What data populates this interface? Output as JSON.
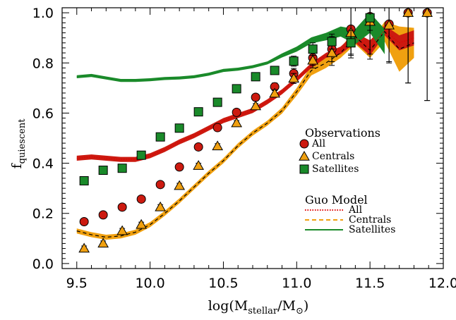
{
  "chart_data": {
    "type": "scatter",
    "xlabel": {
      "main": "log(M",
      "sub": "stellar",
      "slash": "/M",
      "sun": "⊙",
      "close": ")"
    },
    "ylabel": {
      "main": "f",
      "sub": "quiescent"
    },
    "xlim": [
      9.4,
      12.0
    ],
    "ylim": [
      -0.02,
      1.02
    ],
    "xticks": [
      9.5,
      10.0,
      10.5,
      11.0,
      11.5,
      12.0
    ],
    "xtick_labels": [
      "9.5",
      "10.0",
      "10.5",
      "11.0",
      "11.5",
      "12.0"
    ],
    "yticks": [
      0.0,
      0.2,
      0.4,
      0.6,
      0.8,
      1.0
    ],
    "ytick_labels": [
      "0.0",
      "0.2",
      "0.4",
      "0.6",
      "0.8",
      "1.0"
    ],
    "grid": false,
    "legend_placement": "right",
    "colors": {
      "all": "#cc1a10",
      "centrals": "#f0a010",
      "satellites": "#1a8a2a",
      "model_all_line": "#dd0000"
    },
    "observations_title": "Observations",
    "model_title": "Guo Model",
    "observations": [
      {
        "name": "All",
        "marker": "circle",
        "color": "#cc1a10",
        "x": [
          9.55,
          9.68,
          9.81,
          9.94,
          10.07,
          10.2,
          10.33,
          10.46,
          10.59,
          10.72,
          10.85,
          10.98,
          11.11,
          11.24,
          11.37,
          11.5,
          11.63,
          11.76,
          11.89
        ],
        "y": [
          0.167,
          0.194,
          0.225,
          0.257,
          0.315,
          0.385,
          0.465,
          0.542,
          0.603,
          0.663,
          0.705,
          0.758,
          0.82,
          0.855,
          0.935,
          0.985,
          0.955,
          1.0,
          1.0
        ],
        "err": [
          0.01,
          0.01,
          0.01,
          0.01,
          0.01,
          0.01,
          0.01,
          0.01,
          0.01,
          0.01,
          0.015,
          0.02,
          0.03,
          0.05,
          0.1,
          0.15,
          0.15,
          0.28,
          0.35
        ]
      },
      {
        "name": "Centrals",
        "marker": "triangle",
        "color": "#f0a010",
        "x": [
          9.55,
          9.68,
          9.81,
          9.94,
          10.07,
          10.2,
          10.33,
          10.46,
          10.59,
          10.72,
          10.85,
          10.98,
          11.11,
          11.24,
          11.37,
          11.5,
          11.63,
          11.76,
          11.89
        ],
        "y": [
          0.06,
          0.08,
          0.13,
          0.155,
          0.225,
          0.31,
          0.39,
          0.468,
          0.56,
          0.628,
          0.678,
          0.738,
          0.81,
          0.84,
          0.92,
          0.965,
          0.95,
          1.0,
          1.0
        ],
        "err": [
          0.01,
          0.01,
          0.01,
          0.01,
          0.01,
          0.01,
          0.01,
          0.01,
          0.01,
          0.01,
          0.015,
          0.02,
          0.03,
          0.05,
          0.1,
          0.15,
          0.15,
          0.28,
          0.35
        ]
      },
      {
        "name": "Satellites",
        "marker": "square",
        "color": "#1a8a2a",
        "x": [
          9.55,
          9.68,
          9.81,
          9.94,
          10.07,
          10.2,
          10.33,
          10.46,
          10.59,
          10.72,
          10.85,
          10.98,
          11.11,
          11.24,
          11.37,
          11.5
        ],
        "y": [
          0.33,
          0.372,
          0.38,
          0.432,
          0.505,
          0.54,
          0.605,
          0.643,
          0.697,
          0.745,
          0.77,
          0.807,
          0.855,
          0.885,
          0.88,
          0.98
        ],
        "err": [
          0.01,
          0.01,
          0.01,
          0.012,
          0.012,
          0.012,
          0.012,
          0.012,
          0.012,
          0.012,
          0.015,
          0.02,
          0.025,
          0.03,
          0.05,
          0.05
        ]
      }
    ],
    "model": [
      {
        "name": "All",
        "line_style": "dotted",
        "color": "#cc1a10",
        "line_color": "#dd0000",
        "x": [
          9.5,
          9.6,
          9.7,
          9.8,
          9.9,
          10.0,
          10.1,
          10.2,
          10.3,
          10.4,
          10.5,
          10.6,
          10.7,
          10.8,
          10.9,
          11.0,
          11.1,
          11.2,
          11.3,
          11.4,
          11.5,
          11.6,
          11.7,
          11.8
        ],
        "y": [
          0.42,
          0.425,
          0.42,
          0.415,
          0.415,
          0.43,
          0.455,
          0.485,
          0.51,
          0.54,
          0.57,
          0.59,
          0.61,
          0.645,
          0.685,
          0.735,
          0.79,
          0.83,
          0.85,
          0.9,
          0.86,
          0.93,
          0.88,
          0.9
        ],
        "band": [
          0.01,
          0.01,
          0.01,
          0.01,
          0.01,
          0.01,
          0.01,
          0.01,
          0.01,
          0.01,
          0.01,
          0.01,
          0.01,
          0.01,
          0.01,
          0.01,
          0.01,
          0.01,
          0.015,
          0.02,
          0.03,
          0.02,
          0.03,
          0.03
        ]
      },
      {
        "name": "Centrals",
        "line_style": "dashed",
        "color": "#f0a010",
        "line_color": "#000000",
        "x": [
          9.5,
          9.6,
          9.7,
          9.8,
          9.9,
          10.0,
          10.1,
          10.2,
          10.3,
          10.4,
          10.5,
          10.6,
          10.7,
          10.8,
          10.9,
          11.0,
          11.1,
          11.2,
          11.3,
          11.4,
          11.5,
          11.6,
          11.7,
          11.8
        ],
        "y": [
          0.13,
          0.115,
          0.105,
          0.11,
          0.125,
          0.155,
          0.2,
          0.25,
          0.305,
          0.36,
          0.41,
          0.47,
          0.52,
          0.56,
          0.61,
          0.685,
          0.77,
          0.8,
          0.84,
          0.905,
          0.85,
          0.925,
          0.855,
          0.88
        ],
        "band": [
          0.01,
          0.01,
          0.01,
          0.01,
          0.01,
          0.01,
          0.01,
          0.01,
          0.01,
          0.01,
          0.01,
          0.01,
          0.01,
          0.01,
          0.012,
          0.015,
          0.02,
          0.02,
          0.02,
          0.03,
          0.03,
          0.04,
          0.09,
          0.06
        ]
      },
      {
        "name": "Satellites",
        "line_style": "solid",
        "color": "#1a8a2a",
        "line_color": "#1a8a2a",
        "x": [
          9.5,
          9.6,
          9.7,
          9.8,
          9.9,
          10.0,
          10.1,
          10.2,
          10.3,
          10.4,
          10.5,
          10.6,
          10.7,
          10.8,
          10.9,
          11.0,
          11.1,
          11.2,
          11.3,
          11.4,
          11.5,
          11.6
        ],
        "y": [
          0.745,
          0.75,
          0.74,
          0.73,
          0.73,
          0.733,
          0.738,
          0.74,
          0.745,
          0.755,
          0.77,
          0.775,
          0.785,
          0.8,
          0.83,
          0.855,
          0.89,
          0.905,
          0.925,
          0.905,
          0.96,
          0.885
        ],
        "band": [
          0.006,
          0.006,
          0.006,
          0.006,
          0.006,
          0.006,
          0.006,
          0.006,
          0.006,
          0.006,
          0.006,
          0.006,
          0.006,
          0.006,
          0.008,
          0.01,
          0.012,
          0.015,
          0.02,
          0.03,
          0.04,
          0.05
        ]
      }
    ]
  }
}
